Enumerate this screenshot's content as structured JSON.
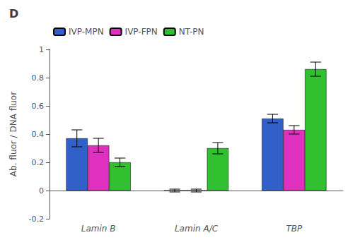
{
  "chart_data": {
    "type": "bar",
    "title": "D",
    "categories": [
      "Lamin B",
      "Lamin A/C",
      "TBP"
    ],
    "series": [
      {
        "name": "IVP-MPN",
        "color": "#3060c8",
        "values": [
          0.37,
          0.0,
          0.51
        ],
        "errors": [
          0.06,
          0.01,
          0.03
        ]
      },
      {
        "name": "IVP-FPN",
        "color": "#e030c0",
        "values": [
          0.32,
          0.0,
          0.43
        ],
        "errors": [
          0.05,
          0.01,
          0.03
        ]
      },
      {
        "name": "NT-PN",
        "color": "#30c030",
        "values": [
          0.2,
          0.3,
          0.86
        ],
        "errors": [
          0.03,
          0.04,
          0.05
        ]
      }
    ],
    "ylabel": "Ab. fluor / DNA fluor",
    "ylim": [
      -0.2,
      1.0
    ],
    "yticks": [
      -0.2,
      0,
      0.2,
      0.4,
      0.6,
      0.8,
      1.0
    ],
    "legend": "upper left"
  }
}
